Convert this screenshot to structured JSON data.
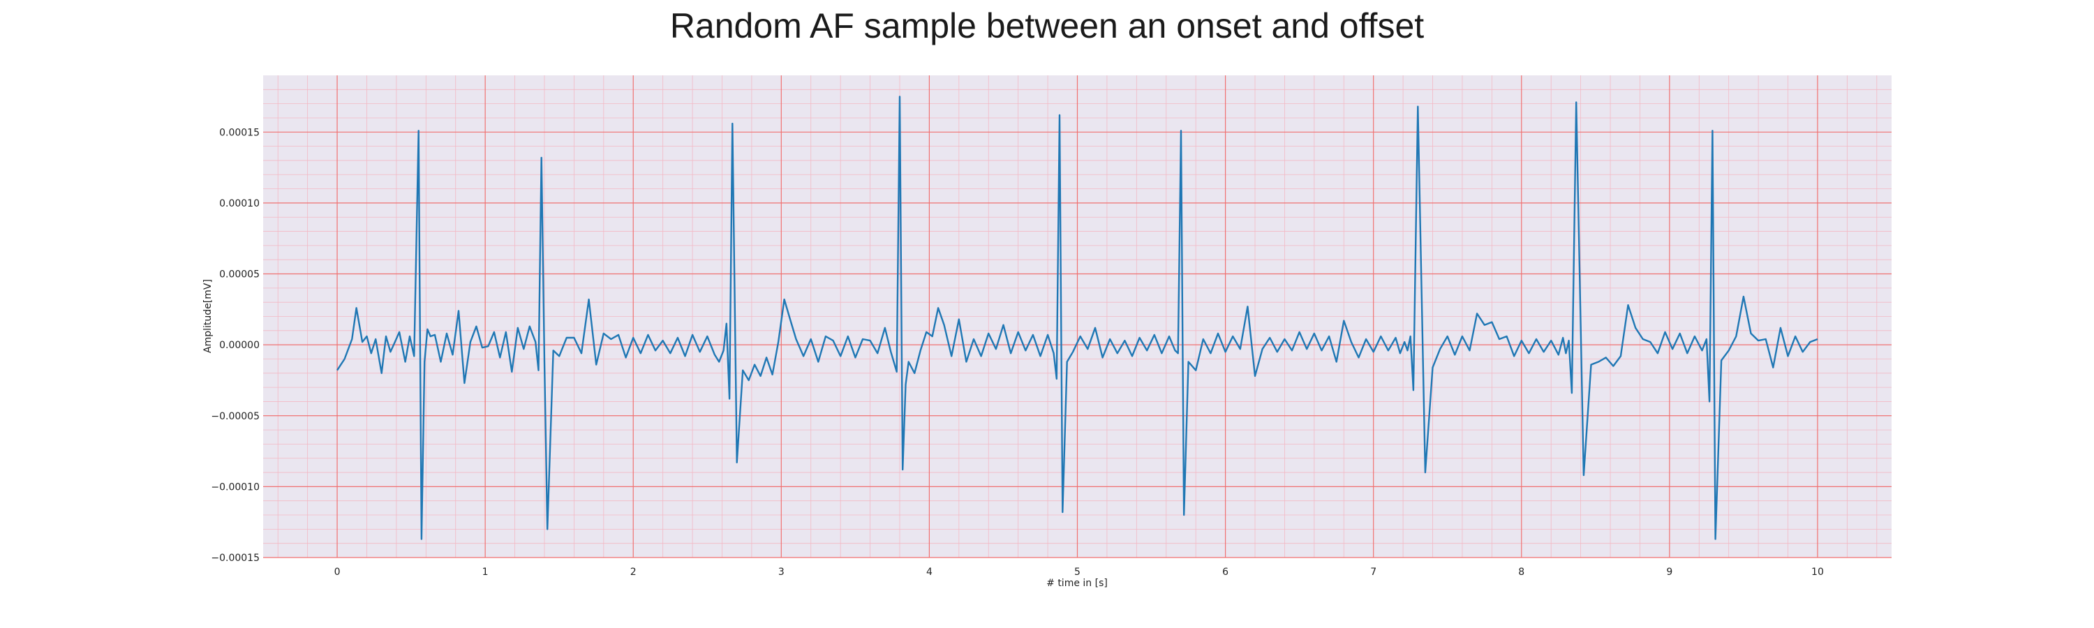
{
  "chart_data": {
    "type": "line",
    "title": "Random AF sample between an onset and offset",
    "xlabel": "# time in [s]",
    "ylabel": "Amplitude[mV]",
    "xlim": [
      -0.5,
      10.5
    ],
    "ylim": [
      -0.00015,
      0.00019
    ],
    "x_ticks": [
      0,
      1,
      2,
      3,
      4,
      5,
      6,
      7,
      8,
      9,
      10
    ],
    "x_tick_labels": [
      "0",
      "1",
      "2",
      "3",
      "4",
      "5",
      "6",
      "7",
      "8",
      "9",
      "10"
    ],
    "y_ticks": [
      -0.00015,
      -0.0001,
      -5e-05,
      0,
      5e-05,
      0.0001,
      0.00015
    ],
    "y_tick_labels": [
      "−0.00015",
      "−0.00010",
      "−0.00005",
      "0.00000",
      "0.00005",
      "0.00010",
      "0.00015"
    ],
    "grid": true,
    "minor_grid": true,
    "colors": {
      "line": "#1f77b4",
      "plot_background": "#eae6f0",
      "major_grid": "#f07070",
      "minor_grid": "#f3b8c4"
    },
    "series": [
      {
        "x": [
          0.0,
          0.05,
          0.1,
          0.13,
          0.17,
          0.2,
          0.23,
          0.26,
          0.3,
          0.33,
          0.36,
          0.39,
          0.42,
          0.46,
          0.49,
          0.52,
          0.55,
          0.57,
          0.59,
          0.61,
          0.63,
          0.66,
          0.7,
          0.74,
          0.78,
          0.82,
          0.86,
          0.9,
          0.94,
          0.98,
          1.02,
          1.06,
          1.1,
          1.14,
          1.18,
          1.22,
          1.26,
          1.3,
          1.34,
          1.36,
          1.38,
          1.4,
          1.42,
          1.46,
          1.5,
          1.55,
          1.6,
          1.65,
          1.7,
          1.75,
          1.8,
          1.85,
          1.9,
          1.95,
          2.0,
          2.05,
          2.1,
          2.15,
          2.2,
          2.25,
          2.3,
          2.35,
          2.4,
          2.45,
          2.5,
          2.55,
          2.58,
          2.61,
          2.63,
          2.65,
          2.67,
          2.7,
          2.74,
          2.78,
          2.82,
          2.86,
          2.9,
          2.94,
          2.98,
          3.02,
          3.06,
          3.1,
          3.15,
          3.2,
          3.25,
          3.3,
          3.35,
          3.4,
          3.45,
          3.5,
          3.55,
          3.6,
          3.65,
          3.7,
          3.74,
          3.78,
          3.8,
          3.82,
          3.84,
          3.86,
          3.9,
          3.94,
          3.98,
          4.02,
          4.06,
          4.1,
          4.15,
          4.2,
          4.25,
          4.3,
          4.35,
          4.4,
          4.45,
          4.5,
          4.55,
          4.6,
          4.65,
          4.7,
          4.75,
          4.8,
          4.84,
          4.86,
          4.88,
          4.9,
          4.93,
          4.97,
          5.02,
          5.07,
          5.12,
          5.17,
          5.22,
          5.27,
          5.32,
          5.37,
          5.42,
          5.47,
          5.52,
          5.57,
          5.62,
          5.66,
          5.68,
          5.7,
          5.72,
          5.75,
          5.8,
          5.85,
          5.9,
          5.95,
          6.0,
          6.05,
          6.1,
          6.15,
          6.2,
          6.25,
          6.3,
          6.35,
          6.4,
          6.45,
          6.5,
          6.55,
          6.6,
          6.65,
          6.7,
          6.75,
          6.8,
          6.85,
          6.9,
          6.95,
          7.0,
          7.05,
          7.1,
          7.15,
          7.18,
          7.21,
          7.23,
          7.25,
          7.27,
          7.3,
          7.35,
          7.4,
          7.45,
          7.5,
          7.55,
          7.6,
          7.65,
          7.7,
          7.75,
          7.8,
          7.85,
          7.9,
          7.95,
          8.0,
          8.05,
          8.1,
          8.15,
          8.2,
          8.25,
          8.28,
          8.3,
          8.32,
          8.34,
          8.37,
          8.42,
          8.47,
          8.52,
          8.57,
          8.62,
          8.67,
          8.72,
          8.77,
          8.82,
          8.87,
          8.92,
          8.97,
          9.02,
          9.07,
          9.12,
          9.17,
          9.22,
          9.25,
          9.27,
          9.29,
          9.31,
          9.35,
          9.4,
          9.45,
          9.5,
          9.55,
          9.6,
          9.65,
          9.7,
          9.75,
          9.8,
          9.85,
          9.9,
          9.95,
          10.0
        ],
        "y": [
          -1.8e-05,
          -1e-05,
          4e-06,
          2.6e-05,
          2e-06,
          6e-06,
          -6e-06,
          4e-06,
          -2e-05,
          6e-06,
          -5e-06,
          2e-06,
          9e-06,
          -1.2e-05,
          6e-06,
          -8e-06,
          0.000151,
          -0.000137,
          -1.2e-05,
          1.1e-05,
          6e-06,
          7e-06,
          -1.2e-05,
          8e-06,
          -7e-06,
          2.4e-05,
          -2.7e-05,
          2e-06,
          1.3e-05,
          -2e-06,
          -1e-06,
          9e-06,
          -9e-06,
          9e-06,
          -1.9e-05,
          1.2e-05,
          -3e-06,
          1.3e-05,
          2e-06,
          -1.8e-05,
          0.000132,
          -1.2e-05,
          -0.00013,
          -4e-06,
          -8e-06,
          5e-06,
          5e-06,
          -6e-06,
          3.2e-05,
          -1.4e-05,
          8e-06,
          4e-06,
          7e-06,
          -9e-06,
          5e-06,
          -6e-06,
          7e-06,
          -4e-06,
          3e-06,
          -6e-06,
          5e-06,
          -8e-06,
          7e-06,
          -5e-06,
          6e-06,
          -7e-06,
          -1.2e-05,
          -4e-06,
          1.5e-05,
          -3.8e-05,
          0.000156,
          -8.3e-05,
          -1.8e-05,
          -2.5e-05,
          -1.4e-05,
          -2.2e-05,
          -9e-06,
          -2.1e-05,
          2e-06,
          3.2e-05,
          1.8e-05,
          4e-06,
          -8e-06,
          4e-06,
          -1.2e-05,
          6e-06,
          3e-06,
          -8e-06,
          6e-06,
          -9e-06,
          4e-06,
          3e-06,
          -6e-06,
          1.2e-05,
          -5e-06,
          -1.9e-05,
          0.000175,
          -8.8e-05,
          -2.8e-05,
          -1.2e-05,
          -2e-05,
          -4e-06,
          9e-06,
          6e-06,
          2.6e-05,
          1.4e-05,
          -8e-06,
          1.8e-05,
          -1.2e-05,
          4e-06,
          -8e-06,
          8e-06,
          -3e-06,
          1.4e-05,
          -6e-06,
          9e-06,
          -4e-06,
          7e-06,
          -8e-06,
          7e-06,
          -6e-06,
          -2.4e-05,
          0.000162,
          -0.000118,
          -1.2e-05,
          -5e-06,
          6e-06,
          -3e-06,
          1.2e-05,
          -9e-06,
          4e-06,
          -6e-06,
          3e-06,
          -8e-06,
          5e-06,
          -4e-06,
          7e-06,
          -6e-06,
          6e-06,
          -4e-06,
          -6e-06,
          0.000151,
          -0.00012,
          -1.2e-05,
          -1.8e-05,
          4e-06,
          -6e-06,
          8e-06,
          -5e-06,
          6e-06,
          -3e-06,
          2.7e-05,
          -2.2e-05,
          -3e-06,
          5e-06,
          -5e-06,
          4e-06,
          -4e-06,
          9e-06,
          -3e-06,
          8e-06,
          -4e-06,
          6e-06,
          -1.2e-05,
          1.7e-05,
          2e-06,
          -9e-06,
          4e-06,
          -5e-06,
          6e-06,
          -4e-06,
          5e-06,
          -6e-06,
          2e-06,
          -4e-06,
          6e-06,
          -3.2e-05,
          0.000168,
          -9e-05,
          -1.6e-05,
          -3e-06,
          6e-06,
          -7e-06,
          6e-06,
          -4e-06,
          2.2e-05,
          1.4e-05,
          1.6e-05,
          4e-06,
          6e-06,
          -8e-06,
          3e-06,
          -6e-06,
          4e-06,
          -5e-06,
          3e-06,
          -7e-06,
          5e-06,
          -6e-06,
          3e-06,
          -3.4e-05,
          0.000171,
          -9.2e-05,
          -1.4e-05,
          -1.2e-05,
          -9e-06,
          -1.5e-05,
          -8e-06,
          2.8e-05,
          1.2e-05,
          4e-06,
          2e-06,
          -6e-06,
          9e-06,
          -3e-06,
          8e-06,
          -6e-06,
          6e-06,
          -4e-06,
          4e-06,
          -4e-05,
          0.000151,
          -0.000137,
          -1.1e-05,
          -4e-06,
          6e-06,
          3.4e-05,
          8e-06,
          3e-06,
          4e-06,
          -1.6e-05,
          1.2e-05,
          -8e-06,
          6e-06,
          -5e-06,
          2e-06,
          4e-06
        ]
      }
    ]
  }
}
